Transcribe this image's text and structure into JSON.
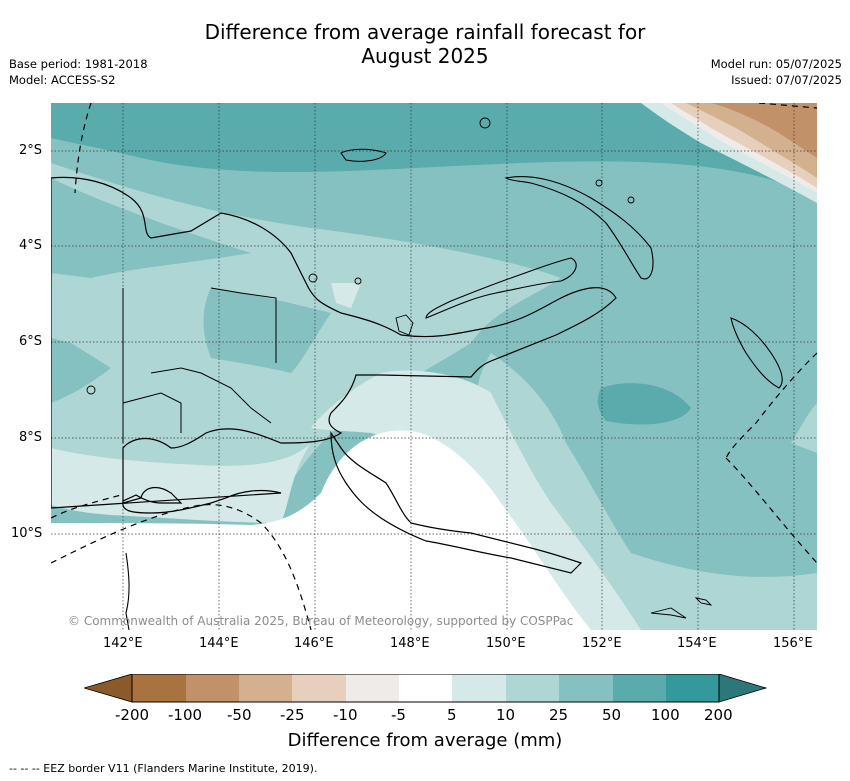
{
  "title_line1": "Difference from average rainfall forecast for",
  "title_line2": "August 2025",
  "base_period": "Base period: 1981-2018",
  "model": "Model: ACCESS-S2",
  "model_run": "Model run: 05/07/2025",
  "issued": "Issued: 07/07/2025",
  "copyright": "© Commonwealth of Australia 2025, Bureau of Meteorology, supported by COSPPac",
  "lat_labels": [
    "2°S",
    "4°S",
    "6°S",
    "8°S",
    "10°S"
  ],
  "lon_labels": [
    "142°E",
    "144°E",
    "146°E",
    "148°E",
    "150°E",
    "152°E",
    "154°E",
    "156°E"
  ],
  "colorbar": {
    "title": "Difference from average (mm)",
    "tick_labels": [
      "-200",
      "-100",
      "-50",
      "-25",
      "-10",
      "-5",
      "5",
      "10",
      "25",
      "50",
      "100",
      "200"
    ],
    "colors": [
      "#8b5a2b",
      "#a8733f",
      "#c1916a",
      "#d3b08e",
      "#e6cfbd",
      "#efebe8",
      "#ffffff",
      "#d5e9e8",
      "#add6d5",
      "#86c1c1",
      "#5aabab",
      "#33999a",
      "#2c7777"
    ]
  },
  "footnote": "--  --  -- EEZ border V11 (Flanders Marine Institute, 2019)."
}
